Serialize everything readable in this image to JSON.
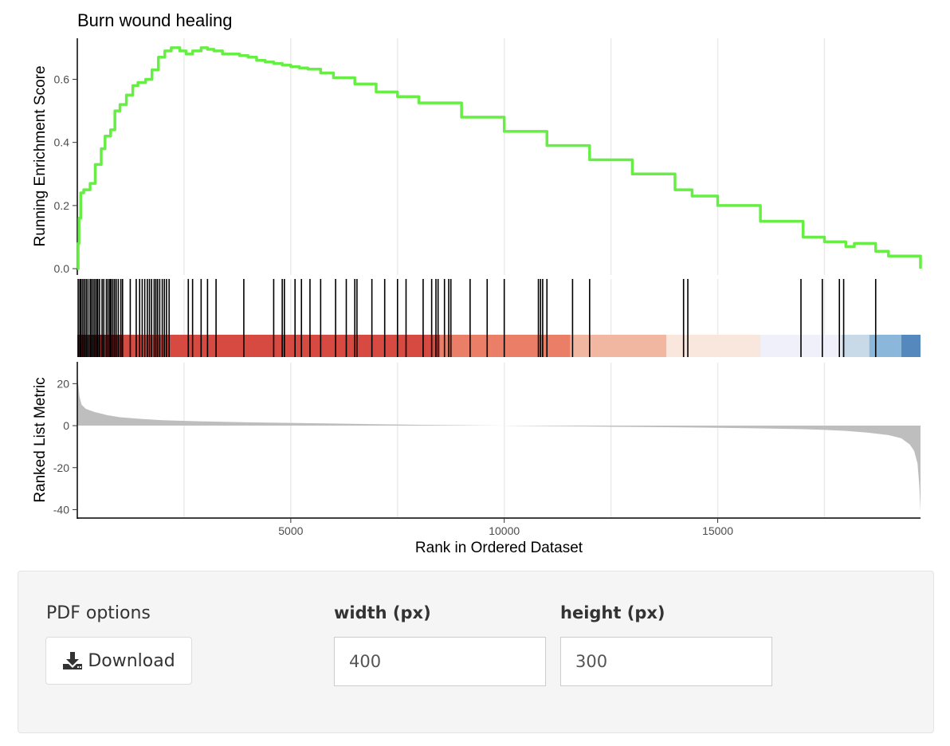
{
  "chart_data": {
    "type": "line",
    "title": "Burn wound healing",
    "xlabel": "Rank in Ordered Dataset",
    "ylabel_top": "Running Enrichment Score",
    "ylabel_bottom": "Ranked List Metric",
    "xlim": [
      0,
      19750
    ],
    "x_ticks": [
      5000,
      10000,
      15000
    ],
    "x_tick_labels": [
      "5000",
      "10000",
      "15000"
    ],
    "es_ylim": [
      -0.02,
      0.73
    ],
    "es_ticks": [
      0.0,
      0.2,
      0.4,
      0.6
    ],
    "es_tick_labels": [
      "0.0",
      "0.2",
      "0.4",
      "0.6"
    ],
    "metric_ylim": [
      -44,
      30
    ],
    "metric_ticks": [
      20,
      0,
      -20,
      -40
    ],
    "metric_tick_labels": [
      "20",
      "0",
      "-20",
      "-40"
    ],
    "grid": true,
    "line_color": "#66ee44",
    "running_es": {
      "x": [
        0,
        20,
        40,
        80,
        150,
        300,
        420,
        560,
        650,
        780,
        880,
        1000,
        1150,
        1300,
        1420,
        1600,
        1750,
        1900,
        2050,
        2200,
        2400,
        2550,
        2700,
        2900,
        3050,
        3200,
        3400,
        3600,
        3800,
        4000,
        4200,
        4400,
        4600,
        4800,
        5000,
        5200,
        5400,
        5700,
        6000,
        6500,
        7000,
        7500,
        8000,
        9000,
        10000,
        11000,
        12000,
        13000,
        14000,
        14400,
        15000,
        16000,
        17000,
        17500,
        18000,
        18200,
        18700,
        19000,
        19750
      ],
      "y": [
        0.0,
        0.08,
        0.16,
        0.24,
        0.25,
        0.27,
        0.33,
        0.38,
        0.42,
        0.44,
        0.5,
        0.52,
        0.55,
        0.58,
        0.59,
        0.6,
        0.63,
        0.67,
        0.69,
        0.7,
        0.69,
        0.68,
        0.69,
        0.7,
        0.695,
        0.69,
        0.68,
        0.68,
        0.675,
        0.67,
        0.66,
        0.655,
        0.65,
        0.645,
        0.64,
        0.636,
        0.632,
        0.62,
        0.605,
        0.585,
        0.56,
        0.545,
        0.525,
        0.48,
        0.435,
        0.39,
        0.345,
        0.3,
        0.25,
        0.23,
        0.2,
        0.15,
        0.1,
        0.085,
        0.07,
        0.08,
        0.055,
        0.04,
        0.0
      ]
    },
    "hit_positions": [
      20,
      60,
      90,
      130,
      170,
      210,
      250,
      300,
      330,
      370,
      410,
      450,
      480,
      520,
      580,
      620,
      680,
      720,
      760,
      790,
      830,
      870,
      910,
      960,
      1020,
      1060,
      1240,
      1380,
      1460,
      1520,
      1580,
      1640,
      1690,
      1740,
      1800,
      1840,
      1880,
      1930,
      1990,
      2040,
      2090,
      2150,
      2600,
      2700,
      2900,
      3050,
      3250,
      3900,
      4600,
      4800,
      4850,
      5100,
      5250,
      5450,
      5700,
      6050,
      6300,
      6500,
      6550,
      6900,
      7200,
      7500,
      7700,
      8100,
      8300,
      8400,
      8450,
      8600,
      8700,
      8750,
      9200,
      9600,
      10000,
      10800,
      10850,
      10900,
      11000,
      11600,
      12000,
      14200,
      14300,
      16950,
      17450,
      17850,
      17950,
      18700
    ],
    "rank_color_bands": [
      {
        "from": 0,
        "to": 1050,
        "color": "#8b2a2a"
      },
      {
        "from": 1050,
        "to": 8500,
        "color": "#d64a42"
      },
      {
        "from": 8500,
        "to": 11550,
        "color": "#ea7e66"
      },
      {
        "from": 11550,
        "to": 13800,
        "color": "#f2b7a0"
      },
      {
        "from": 13800,
        "to": 16000,
        "color": "#f9e6dd"
      },
      {
        "from": 16000,
        "to": 17900,
        "color": "#eff0f9"
      },
      {
        "from": 17900,
        "to": 18550,
        "color": "#c8d9e8"
      },
      {
        "from": 18550,
        "to": 19300,
        "color": "#8ab7da"
      },
      {
        "from": 19300,
        "to": 19750,
        "color": "#5589bd"
      }
    ],
    "ranked_metric": {
      "x": [
        0,
        20,
        50,
        100,
        200,
        400,
        700,
        1000,
        1500,
        2000,
        3000,
        4000,
        5000,
        6000,
        7000,
        8000,
        9000,
        10000,
        11000,
        12000,
        13000,
        14000,
        15000,
        16000,
        17000,
        17500,
        18000,
        18500,
        19000,
        19300,
        19500,
        19600,
        19680,
        19720,
        19750
      ],
      "y": [
        24,
        20,
        14,
        10,
        8,
        6.5,
        5,
        4,
        3.2,
        2.6,
        2.0,
        1.6,
        1.3,
        1.0,
        0.7,
        0.4,
        0.2,
        0.0,
        -0.2,
        -0.4,
        -0.6,
        -0.8,
        -1.0,
        -1.3,
        -1.7,
        -2.0,
        -2.5,
        -3.3,
        -4.5,
        -6,
        -9,
        -12,
        -18,
        -28,
        -41
      ]
    }
  },
  "pdf_options": {
    "heading": "PDF options",
    "download_label": "Download",
    "width_label": "width (px)",
    "width_value": "400",
    "height_label": "height (px)",
    "height_value": "300"
  }
}
